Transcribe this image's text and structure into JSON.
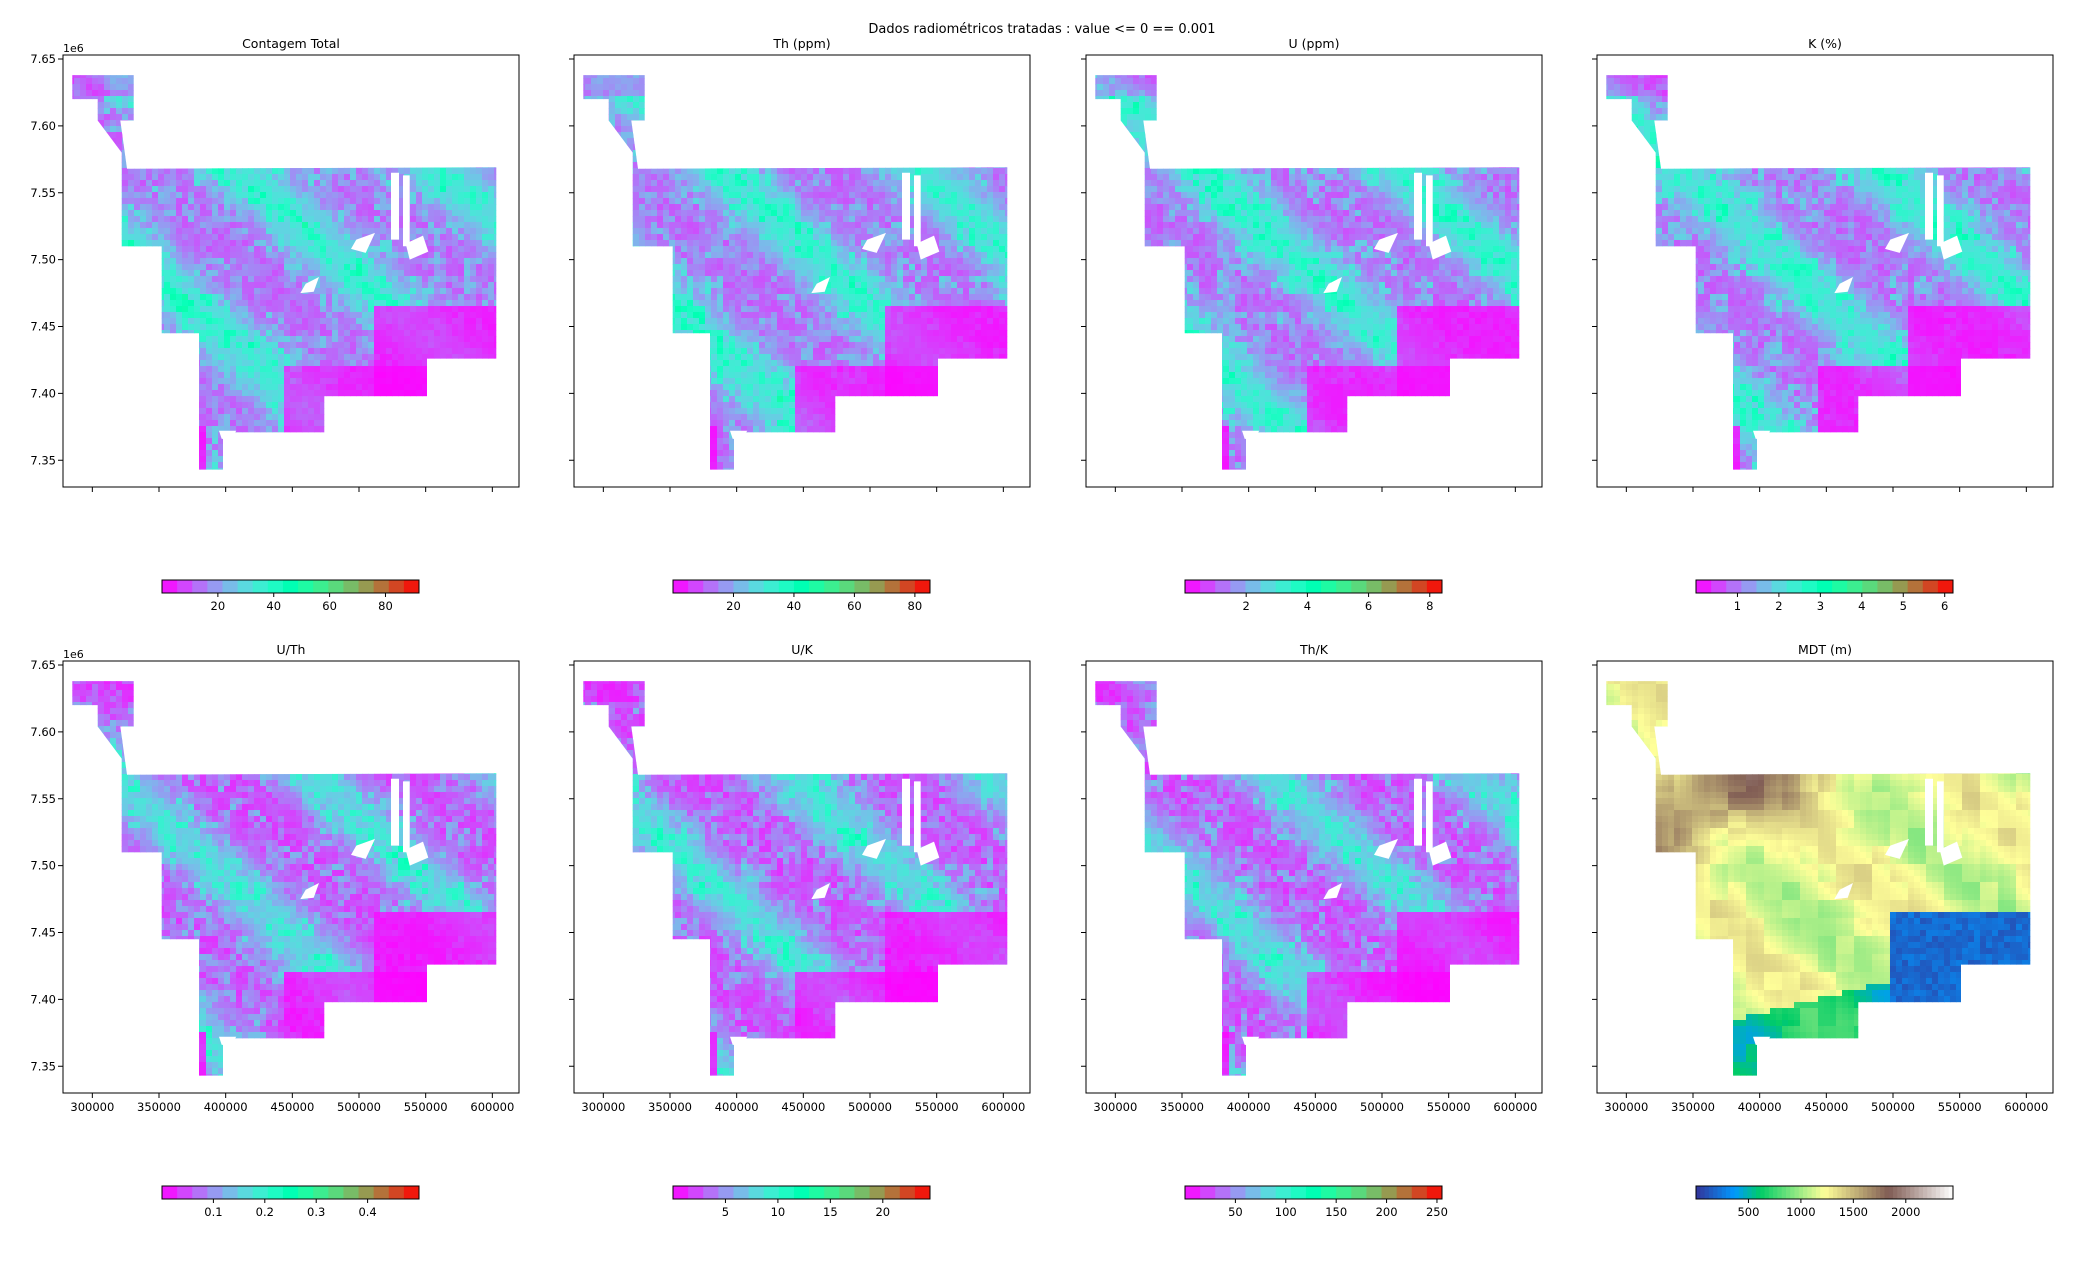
{
  "figure": {
    "suptitle": "Dados radiométricos tratadas : value <= 0 == 0.001"
  },
  "chart_data": [
    {
      "type": "heatmap",
      "title": "Contagem Total",
      "colormap": "rainbow",
      "xlim": [
        278000,
        620000
      ],
      "ylim": [
        7330000,
        7653000
      ],
      "y_offset_label": "1e6",
      "yticks": [
        7350000,
        7400000,
        7450000,
        7500000,
        7550000,
        7600000,
        7650000
      ],
      "ytick_labels": [
        "7.35",
        "7.40",
        "7.45",
        "7.50",
        "7.55",
        "7.60",
        "7.65"
      ],
      "xticks": [
        300000,
        350000,
        400000,
        450000,
        500000,
        550000,
        600000
      ],
      "xtick_labels": [],
      "colorbar": {
        "range": [
          0,
          92
        ],
        "ticks": [
          20,
          40,
          60,
          80
        ],
        "tick_labels": [
          "20",
          "40",
          "60",
          "80"
        ]
      }
    },
    {
      "type": "heatmap",
      "title": "Th (ppm)",
      "colormap": "rainbow",
      "xlim": [
        278000,
        620000
      ],
      "ylim": [
        7330000,
        7653000
      ],
      "yticks": [
        7350000,
        7400000,
        7450000,
        7500000,
        7550000,
        7600000,
        7650000
      ],
      "xticks": [
        300000,
        350000,
        400000,
        450000,
        500000,
        550000,
        600000
      ],
      "xtick_labels": [],
      "colorbar": {
        "range": [
          0,
          85
        ],
        "ticks": [
          20,
          40,
          60,
          80
        ],
        "tick_labels": [
          "20",
          "40",
          "60",
          "80"
        ]
      }
    },
    {
      "type": "heatmap",
      "title": "U (ppm)",
      "colormap": "rainbow",
      "xlim": [
        278000,
        620000
      ],
      "ylim": [
        7330000,
        7653000
      ],
      "yticks": [
        7350000,
        7400000,
        7450000,
        7500000,
        7550000,
        7600000,
        7650000
      ],
      "xticks": [
        300000,
        350000,
        400000,
        450000,
        500000,
        550000,
        600000
      ],
      "xtick_labels": [],
      "colorbar": {
        "range": [
          0,
          8.4
        ],
        "ticks": [
          2,
          4,
          6,
          8
        ],
        "tick_labels": [
          "2",
          "4",
          "6",
          "8"
        ]
      }
    },
    {
      "type": "heatmap",
      "title": "K (%)",
      "colormap": "rainbow",
      "xlim": [
        278000,
        620000
      ],
      "ylim": [
        7330000,
        7653000
      ],
      "yticks": [
        7350000,
        7400000,
        7450000,
        7500000,
        7550000,
        7600000,
        7650000
      ],
      "xticks": [
        300000,
        350000,
        400000,
        450000,
        500000,
        550000,
        600000
      ],
      "xtick_labels": [],
      "colorbar": {
        "range": [
          0,
          6.2
        ],
        "ticks": [
          1,
          2,
          3,
          4,
          5,
          6
        ],
        "tick_labels": [
          "1",
          "2",
          "3",
          "4",
          "5",
          "6"
        ]
      }
    },
    {
      "type": "heatmap",
      "title": "U/Th",
      "colormap": "rainbow",
      "xlim": [
        278000,
        620000
      ],
      "ylim": [
        7330000,
        7653000
      ],
      "y_offset_label": "1e6",
      "yticks": [
        7350000,
        7400000,
        7450000,
        7500000,
        7550000,
        7600000,
        7650000
      ],
      "ytick_labels": [
        "7.35",
        "7.40",
        "7.45",
        "7.50",
        "7.55",
        "7.60",
        "7.65"
      ],
      "xticks": [
        300000,
        350000,
        400000,
        450000,
        500000,
        550000,
        600000
      ],
      "xtick_labels": [
        "300000",
        "350000",
        "400000",
        "450000",
        "500000",
        "550000",
        "600000"
      ],
      "colorbar": {
        "range": [
          0,
          0.5
        ],
        "ticks": [
          0.1,
          0.2,
          0.3,
          0.4
        ],
        "tick_labels": [
          "0.1",
          "0.2",
          "0.3",
          "0.4"
        ]
      }
    },
    {
      "type": "heatmap",
      "title": "U/K",
      "colormap": "rainbow",
      "xlim": [
        278000,
        620000
      ],
      "ylim": [
        7330000,
        7653000
      ],
      "yticks": [
        7350000,
        7400000,
        7450000,
        7500000,
        7550000,
        7600000,
        7650000
      ],
      "xticks": [
        300000,
        350000,
        400000,
        450000,
        500000,
        550000,
        600000
      ],
      "xtick_labels": [
        "300000",
        "350000",
        "400000",
        "450000",
        "500000",
        "550000",
        "600000"
      ],
      "colorbar": {
        "range": [
          0,
          24.5
        ],
        "ticks": [
          5,
          10,
          15,
          20
        ],
        "tick_labels": [
          "5",
          "10",
          "15",
          "20"
        ]
      }
    },
    {
      "type": "heatmap",
      "title": "Th/K",
      "colormap": "rainbow",
      "xlim": [
        278000,
        620000
      ],
      "ylim": [
        7330000,
        7653000
      ],
      "yticks": [
        7350000,
        7400000,
        7450000,
        7500000,
        7550000,
        7600000,
        7650000
      ],
      "xticks": [
        300000,
        350000,
        400000,
        450000,
        500000,
        550000,
        600000
      ],
      "xtick_labels": [
        "300000",
        "350000",
        "400000",
        "450000",
        "500000",
        "550000",
        "600000"
      ],
      "colorbar": {
        "range": [
          0,
          255
        ],
        "ticks": [
          50,
          100,
          150,
          200,
          250
        ],
        "tick_labels": [
          "50",
          "100",
          "150",
          "200",
          "250"
        ]
      }
    },
    {
      "type": "heatmap",
      "title": "MDT (m)",
      "colormap": "terrain",
      "xlim": [
        278000,
        620000
      ],
      "ylim": [
        7330000,
        7653000
      ],
      "yticks": [
        7350000,
        7400000,
        7450000,
        7500000,
        7550000,
        7600000,
        7650000
      ],
      "xticks": [
        300000,
        350000,
        400000,
        450000,
        500000,
        550000,
        600000
      ],
      "xtick_labels": [
        "300000",
        "350000",
        "400000",
        "450000",
        "500000",
        "550000",
        "600000"
      ],
      "colorbar": {
        "range": [
          0,
          2450
        ],
        "ticks": [
          500,
          1000,
          1500,
          2000
        ],
        "tick_labels": [
          "500",
          "1000",
          "1500",
          "2000"
        ]
      }
    }
  ]
}
